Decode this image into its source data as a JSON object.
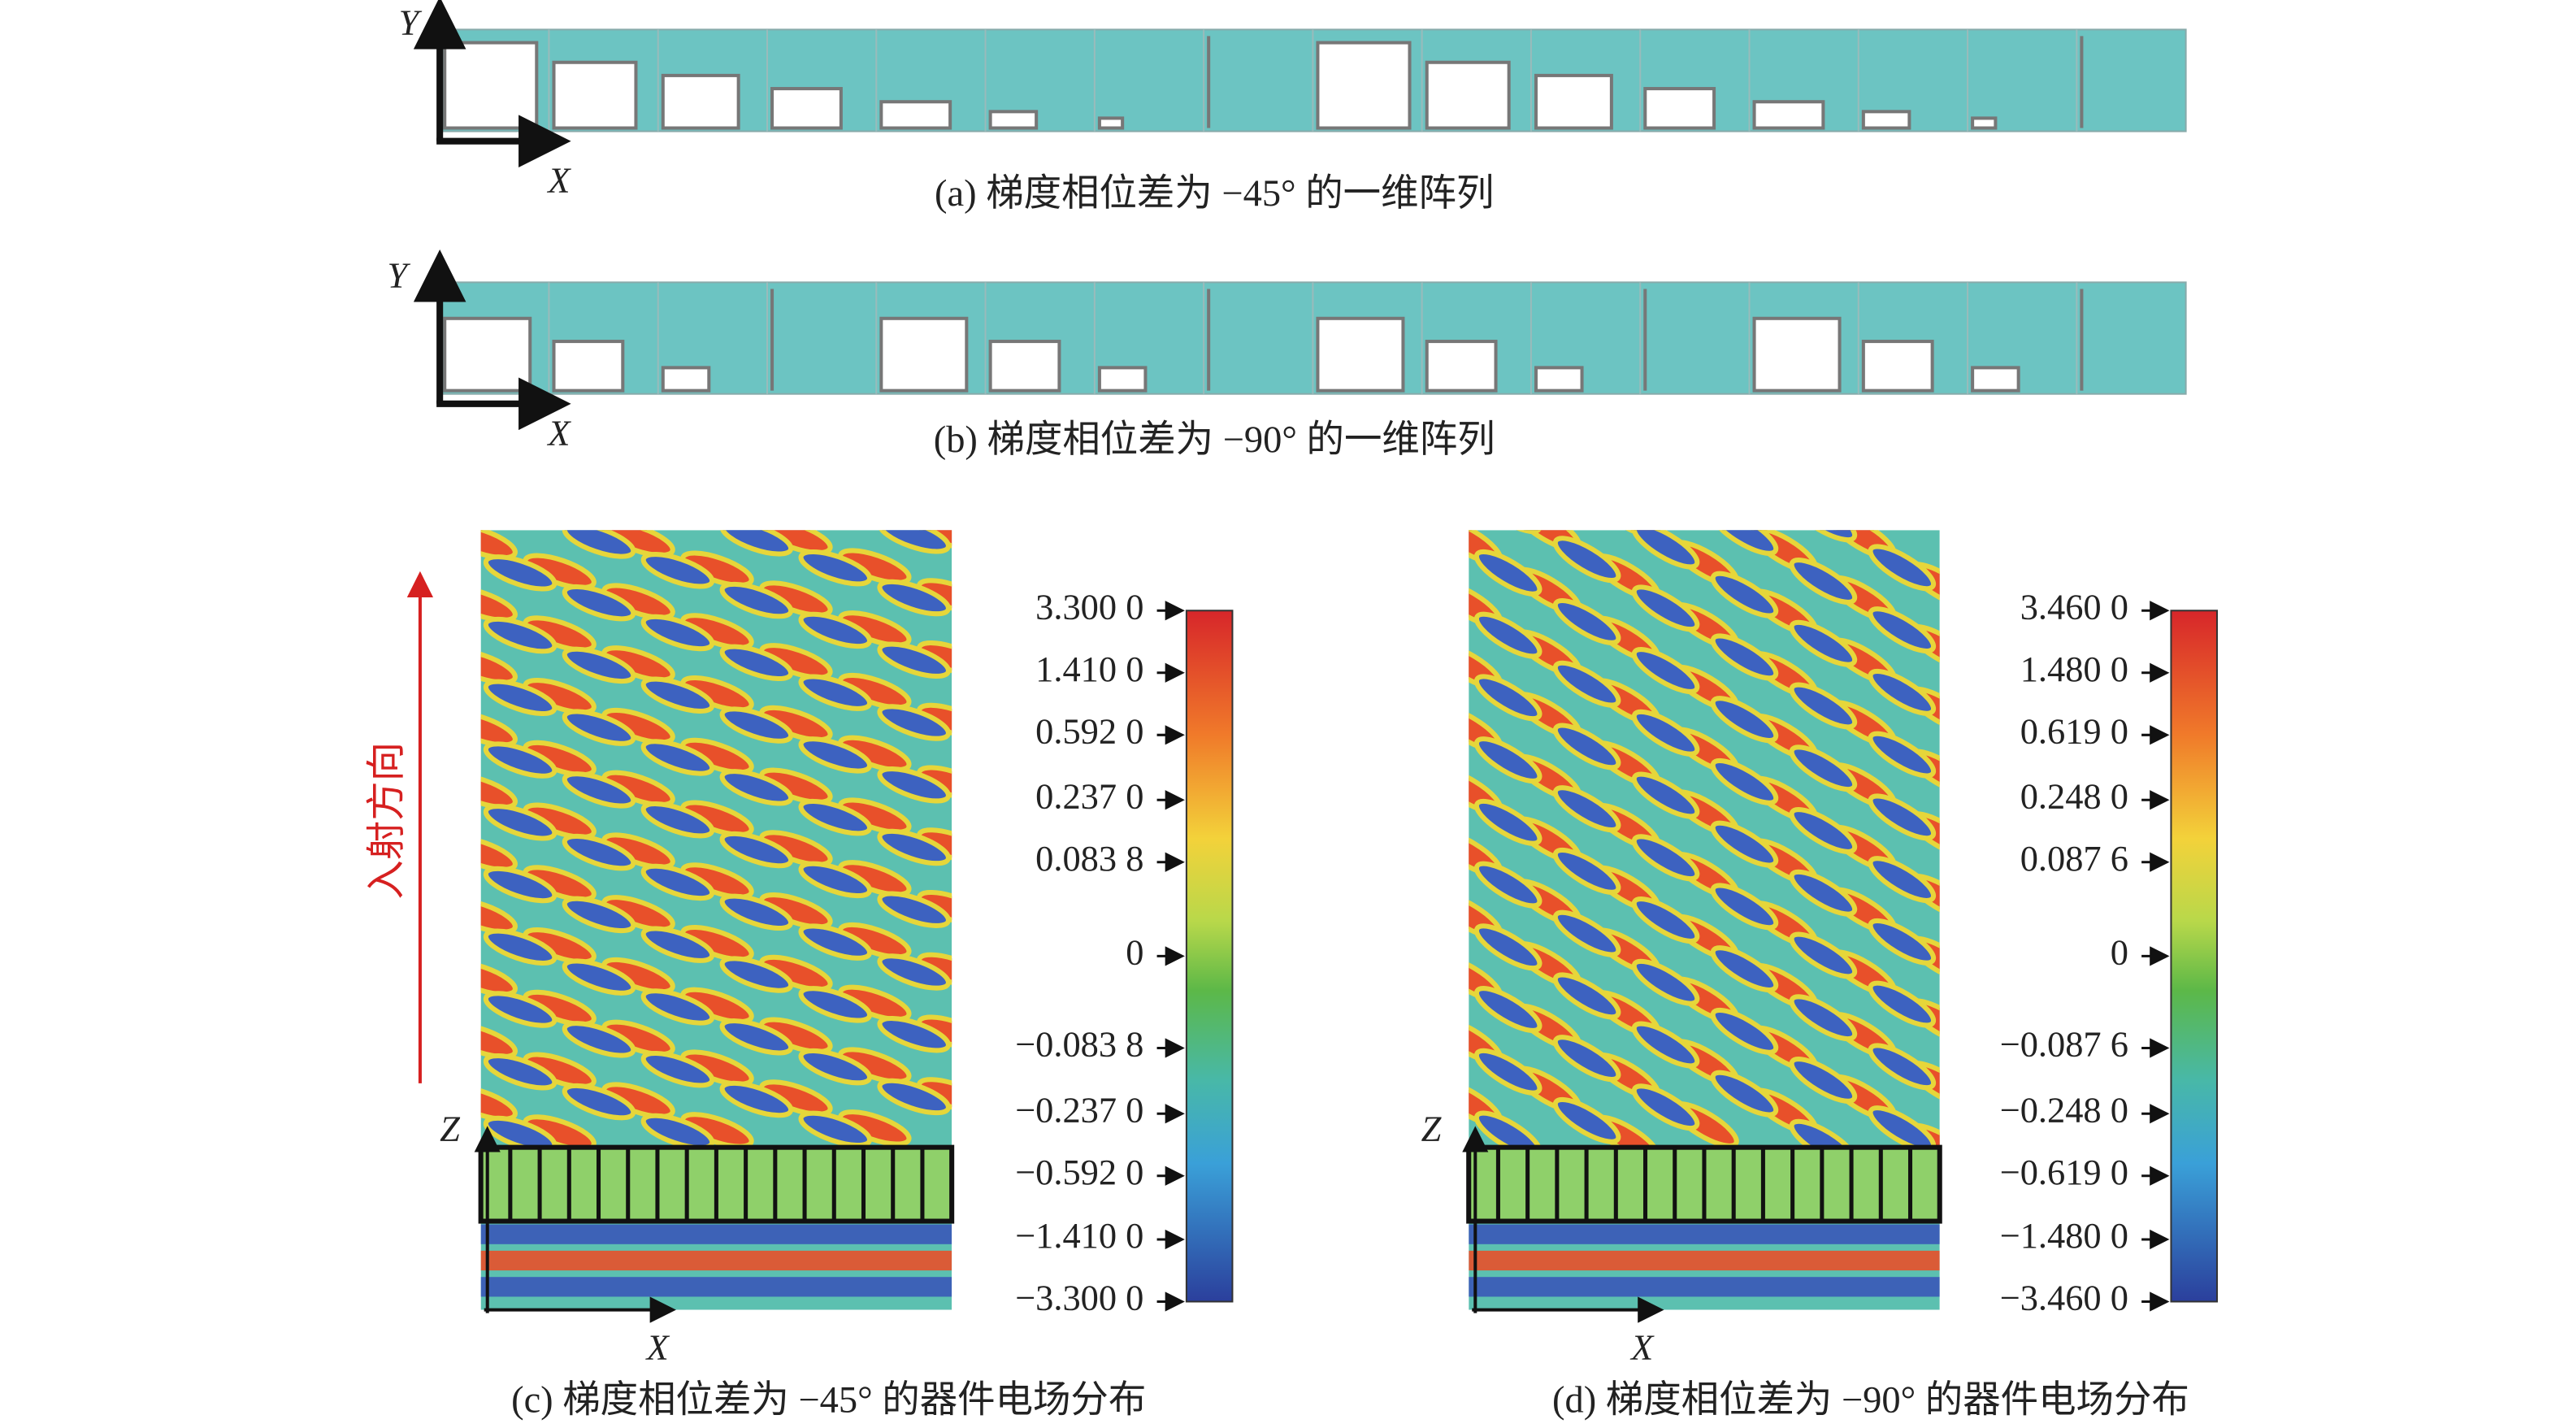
{
  "panel_a": {
    "caption": "(a) 梯度相位差为 −45° 的一维阵列",
    "axis_x": "X",
    "axis_y": "Y"
  },
  "panel_b": {
    "caption": "(b) 梯度相位差为 −90° 的一维阵列",
    "axis_x": "X",
    "axis_y": "Y"
  },
  "panel_c": {
    "caption": "(c) 梯度相位差为 −45° 的器件电场分布",
    "axis_x": "X",
    "axis_z": "Z",
    "incidence_label": "入射方向",
    "colorbar_labels": [
      "3.300 0",
      "1.410 0",
      "0.592 0",
      "0.237 0",
      "0.083 8",
      "0",
      "−0.083 8",
      "−0.237 0",
      "−0.592 0",
      "−1.410 0",
      "−3.300 0"
    ]
  },
  "panel_d": {
    "caption": "(d) 梯度相位差为 −90° 的器件电场分布",
    "axis_x": "X",
    "axis_z": "Z",
    "colorbar_labels": [
      "3.460 0",
      "1.480 0",
      "0.619 0",
      "0.248 0",
      "0.087 6",
      "0",
      "−0.087 6",
      "−0.248 0",
      "−0.619 0",
      "−1.480 0",
      "−3.460 0"
    ]
  }
}
